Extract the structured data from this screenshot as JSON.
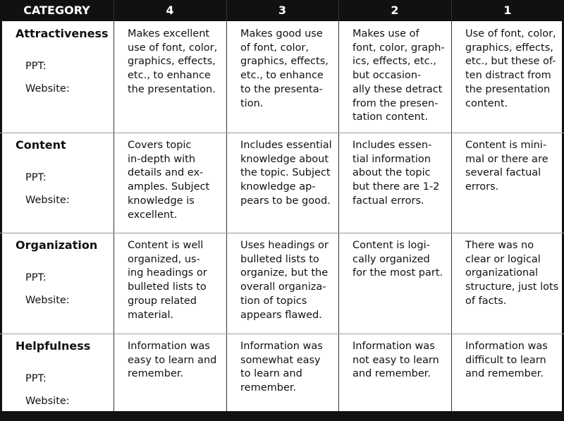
{
  "table": {
    "header": [
      "CATEGORY",
      "4",
      "3",
      "2",
      "1"
    ],
    "rows": [
      {
        "category": "Attractiveness",
        "sub": [
          "PPT:",
          "Website:"
        ],
        "cells": [
          [
            "Makes excellent",
            "use of font, color,",
            "graphics, effects,",
            "etc., to enhance",
            "the presentation."
          ],
          [
            "Makes good use",
            "of font, color,",
            "graphics, effects,",
            "etc., to enhance",
            "to the presenta-",
            "tion."
          ],
          [
            "Makes use of",
            "font, color, graph-",
            "ics, effects, etc.,",
            "but occasion-",
            "ally these detract",
            "from the presen-",
            "tation content."
          ],
          [
            "Use of font, color,",
            "graphics, effects,",
            "etc., but these of-",
            "ten distract from",
            "the presentation",
            "content."
          ]
        ]
      },
      {
        "category": "Content",
        "sub": [
          "PPT:",
          "Website:"
        ],
        "cells": [
          [
            "Covers topic",
            "in-depth with",
            "details and ex-",
            "amples. Subject",
            "knowledge is",
            "excellent."
          ],
          [
            "Includes essential",
            "knowledge about",
            "the topic. Subject",
            "knowledge ap-",
            "pears to be good."
          ],
          [
            "Includes essen-",
            "tial information",
            "about the topic",
            "but there are 1-2",
            "factual errors."
          ],
          [
            "Content is mini-",
            "mal or there are",
            "several factual",
            "errors."
          ]
        ]
      },
      {
        "category": "Organization",
        "sub": [
          "PPT:",
          "Website:"
        ],
        "cells": [
          [
            "Content is well",
            "organized, us-",
            "ing headings or",
            "bulleted lists to",
            "group related",
            "material."
          ],
          [
            "Uses headings or",
            "bulleted lists to",
            "organize, but the",
            "overall organiza-",
            "tion of topics",
            "appears flawed."
          ],
          [
            "Content is logi-",
            "cally organized",
            "for the most part."
          ],
          [
            "There was no",
            "clear or logical",
            "organizational",
            "structure, just lots",
            "of facts."
          ]
        ]
      },
      {
        "category": "Helpfulness",
        "sub": [
          "PPT:",
          "Website:"
        ],
        "cells": [
          [
            "Information was",
            "easy to learn and",
            "remember."
          ],
          [
            "Information was",
            "somewhat easy",
            "to learn and",
            "remember."
          ],
          [
            "Information was",
            "not easy to learn",
            "and remember."
          ],
          [
            "Information was",
            "difficult to learn",
            "and remember."
          ]
        ]
      }
    ]
  }
}
